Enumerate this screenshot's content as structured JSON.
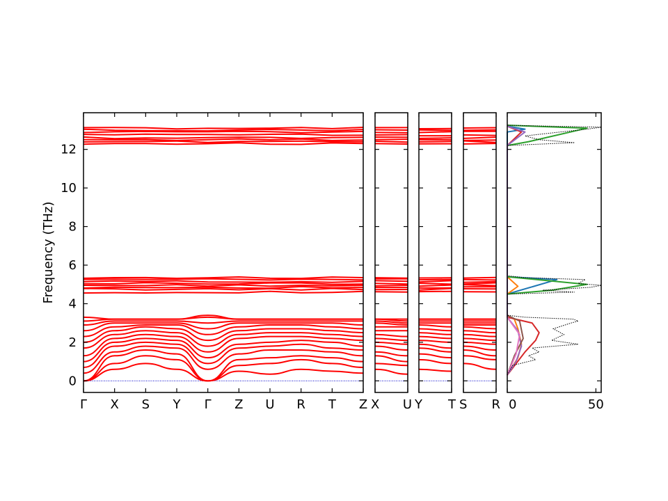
{
  "chart_data": {
    "type": "line",
    "title": "",
    "ylabel": "Frequency (THz)",
    "ylim": [
      -0.6,
      13.9
    ],
    "yticks": [
      0,
      2,
      4,
      6,
      8,
      10,
      12
    ],
    "line_color": "#ff0000",
    "zero_line_color": "#0000cc",
    "band_groups": [
      [
        4.6,
        4.75,
        4.85,
        4.95,
        5.05,
        5.15,
        5.25,
        5.35
      ],
      [
        12.3,
        12.4,
        12.5,
        12.6,
        12.75,
        12.9,
        13.0,
        13.1
      ]
    ],
    "band_structure_panels": [
      {
        "kpoints": [
          "Γ",
          "X",
          "S",
          "Y",
          "Γ",
          "Z",
          "U",
          "R",
          "T",
          "Z"
        ],
        "low_band_energies_thz": [
          [
            0.0,
            0.6,
            0.9,
            0.6,
            0.0,
            0.5,
            0.35,
            0.6,
            0.5,
            0.4
          ],
          [
            0.0,
            0.9,
            1.3,
            1.1,
            0.0,
            0.8,
            0.9,
            1.1,
            0.9,
            0.7
          ],
          [
            0.0,
            1.3,
            1.6,
            1.4,
            0.0,
            1.1,
            1.2,
            1.3,
            1.2,
            1.0
          ],
          [
            0.4,
            1.5,
            1.8,
            1.7,
            0.6,
            1.4,
            1.6,
            1.6,
            1.5,
            1.3
          ],
          [
            0.7,
            1.8,
            2.0,
            1.9,
            0.9,
            1.7,
            1.8,
            1.9,
            1.7,
            1.6
          ],
          [
            1.0,
            2.0,
            2.2,
            2.1,
            1.2,
            1.9,
            2.0,
            2.1,
            2.0,
            1.8
          ],
          [
            1.3,
            2.2,
            2.4,
            2.3,
            1.5,
            2.2,
            2.3,
            2.3,
            2.2,
            2.1
          ],
          [
            1.7,
            2.4,
            2.6,
            2.5,
            1.8,
            2.4,
            2.5,
            2.5,
            2.4,
            2.3
          ],
          [
            2.0,
            2.6,
            2.8,
            2.7,
            2.1,
            2.6,
            2.7,
            2.7,
            2.6,
            2.5
          ],
          [
            2.3,
            2.8,
            2.9,
            2.9,
            2.4,
            2.8,
            2.9,
            2.9,
            2.8,
            2.7
          ],
          [
            2.6,
            3.0,
            3.0,
            3.0,
            2.7,
            3.0,
            3.0,
            3.0,
            3.0,
            2.9
          ],
          [
            2.9,
            3.1,
            3.1,
            3.1,
            3.0,
            3.1,
            3.1,
            3.1,
            3.1,
            3.1
          ],
          [
            3.1,
            3.2,
            3.2,
            3.2,
            3.3,
            3.2,
            3.2,
            3.2,
            3.2,
            3.2
          ],
          [
            3.3,
            3.2,
            3.2,
            3.2,
            3.4,
            3.2,
            3.2,
            3.2,
            3.2,
            3.2
          ]
        ]
      },
      {
        "kpoints": [
          "X",
          "U"
        ],
        "low_band_energies_thz": [
          [
            0.6,
            0.35
          ],
          [
            0.9,
            0.8
          ],
          [
            1.3,
            1.0
          ],
          [
            1.5,
            1.3
          ],
          [
            1.8,
            1.6
          ],
          [
            2.0,
            1.9
          ],
          [
            2.2,
            2.1
          ],
          [
            2.4,
            2.3
          ],
          [
            2.6,
            2.6
          ],
          [
            2.8,
            2.8
          ],
          [
            3.0,
            2.9
          ],
          [
            3.1,
            3.0
          ],
          [
            3.2,
            3.1
          ],
          [
            3.2,
            3.2
          ]
        ]
      },
      {
        "kpoints": [
          "Y",
          "T"
        ],
        "low_band_energies_thz": [
          [
            0.6,
            0.5
          ],
          [
            1.1,
            0.9
          ],
          [
            1.4,
            1.2
          ],
          [
            1.7,
            1.5
          ],
          [
            1.9,
            1.7
          ],
          [
            2.1,
            2.0
          ],
          [
            2.3,
            2.2
          ],
          [
            2.5,
            2.4
          ],
          [
            2.7,
            2.6
          ],
          [
            2.9,
            2.8
          ],
          [
            3.0,
            3.0
          ],
          [
            3.1,
            3.1
          ],
          [
            3.2,
            3.2
          ],
          [
            3.2,
            3.2
          ]
        ]
      },
      {
        "kpoints": [
          "S",
          "R"
        ],
        "low_band_energies_thz": [
          [
            0.9,
            0.6
          ],
          [
            1.3,
            1.1
          ],
          [
            1.6,
            1.3
          ],
          [
            1.8,
            1.6
          ],
          [
            2.0,
            1.9
          ],
          [
            2.2,
            2.1
          ],
          [
            2.4,
            2.3
          ],
          [
            2.6,
            2.5
          ],
          [
            2.8,
            2.7
          ],
          [
            2.9,
            2.9
          ],
          [
            3.0,
            3.0
          ],
          [
            3.1,
            3.1
          ],
          [
            3.2,
            3.2
          ],
          [
            3.2,
            3.2
          ]
        ]
      }
    ],
    "dos_panel": {
      "xlim": [
        0,
        53
      ],
      "xticks": [
        0,
        50
      ],
      "total_dos": {
        "color": "#000000",
        "style": "dotted",
        "points": [
          [
            0.3,
            0
          ],
          [
            0.8,
            3
          ],
          [
            1.1,
            16
          ],
          [
            1.3,
            12
          ],
          [
            1.5,
            18
          ],
          [
            1.7,
            14
          ],
          [
            1.9,
            40
          ],
          [
            2.1,
            25
          ],
          [
            2.4,
            32
          ],
          [
            2.7,
            26
          ],
          [
            3.0,
            36
          ],
          [
            3.1,
            40
          ],
          [
            3.2,
            37
          ],
          [
            3.3,
            10
          ],
          [
            3.4,
            0
          ],
          [
            4.5,
            0
          ],
          [
            4.6,
            38
          ],
          [
            4.7,
            20
          ],
          [
            4.85,
            47
          ],
          [
            4.95,
            53
          ],
          [
            5.05,
            40
          ],
          [
            5.25,
            44
          ],
          [
            5.35,
            10
          ],
          [
            5.45,
            0
          ],
          [
            12.2,
            0
          ],
          [
            12.35,
            38
          ],
          [
            12.5,
            18
          ],
          [
            12.7,
            10
          ],
          [
            12.9,
            30
          ],
          [
            13.05,
            45
          ],
          [
            13.15,
            53
          ],
          [
            13.25,
            0
          ]
        ]
      },
      "partial_dos": [
        {
          "color": "#1f77b4",
          "points": [
            [
              4.5,
              0
            ],
            [
              4.9,
              15
            ],
            [
              5.25,
              28
            ],
            [
              5.4,
              0
            ],
            [
              12.9,
              0
            ],
            [
              13.05,
              10
            ],
            [
              13.2,
              0
            ]
          ]
        },
        {
          "color": "#ff7f0e",
          "points": [
            [
              0.3,
              0
            ],
            [
              1.2,
              6
            ],
            [
              1.9,
              8
            ],
            [
              2.7,
              6
            ],
            [
              3.2,
              4
            ],
            [
              3.4,
              0
            ],
            [
              4.5,
              0
            ],
            [
              4.9,
              6
            ],
            [
              5.4,
              0
            ]
          ]
        },
        {
          "color": "#2ca02c",
          "points": [
            [
              4.5,
              0
            ],
            [
              4.7,
              25
            ],
            [
              5.0,
              45
            ],
            [
              5.4,
              0
            ],
            [
              12.2,
              0
            ],
            [
              12.4,
              12
            ],
            [
              13.1,
              45
            ],
            [
              13.25,
              0
            ]
          ]
        },
        {
          "color": "#d62728",
          "points": [
            [
              0.3,
              0
            ],
            [
              1.5,
              10
            ],
            [
              2.1,
              16
            ],
            [
              2.5,
              18
            ],
            [
              3.0,
              14
            ],
            [
              3.3,
              0
            ],
            [
              12.2,
              0
            ],
            [
              12.9,
              8
            ],
            [
              13.2,
              0
            ]
          ]
        },
        {
          "color": "#9467bd",
          "points": [
            [
              0.3,
              0
            ],
            [
              1.0,
              5
            ],
            [
              1.8,
              8
            ],
            [
              2.6,
              6
            ],
            [
              3.3,
              0
            ],
            [
              12.2,
              0
            ],
            [
              12.9,
              10
            ],
            [
              13.2,
              0
            ]
          ]
        },
        {
          "color": "#8c564b",
          "points": [
            [
              0.3,
              0
            ],
            [
              1.3,
              4
            ],
            [
              2.2,
              9
            ],
            [
              3.1,
              7
            ],
            [
              3.4,
              0
            ]
          ]
        },
        {
          "color": "#e377c2",
          "points": [
            [
              0.3,
              0
            ],
            [
              1.4,
              5
            ],
            [
              2.4,
              7
            ],
            [
              3.3,
              0
            ]
          ]
        }
      ]
    }
  }
}
